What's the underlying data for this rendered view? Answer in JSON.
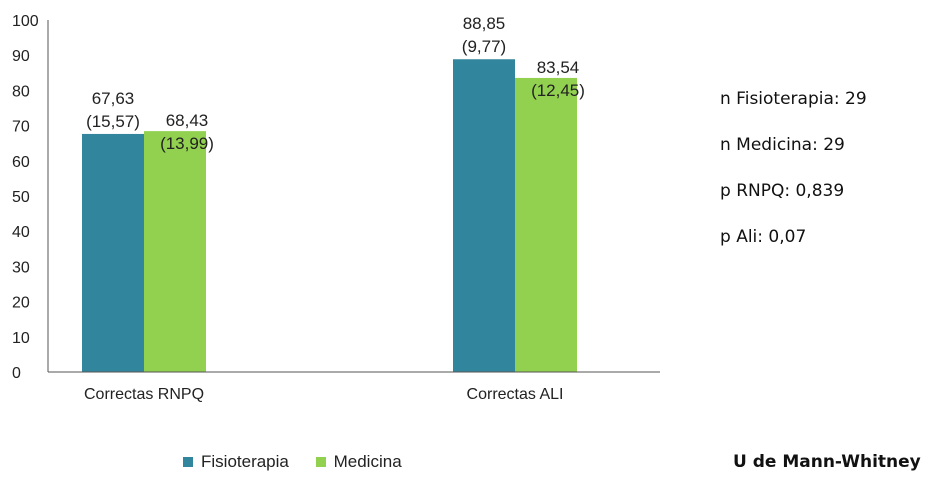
{
  "chart_data": {
    "type": "bar",
    "categories": [
      "Correctas RNPQ",
      "Correctas ALI"
    ],
    "series": [
      {
        "name": "Fisioterapia",
        "values": [
          67.63,
          88.85
        ],
        "labels": [
          "67,63",
          "88,85"
        ],
        "sd_labels": [
          "(15,57)",
          "(9,77)"
        ],
        "color": "#31859C"
      },
      {
        "name": "Medicina",
        "values": [
          68.43,
          83.54
        ],
        "labels": [
          "68,43",
          "83,54"
        ],
        "sd_labels": [
          "(13,99)",
          "(12,45)"
        ],
        "color": "#92D050"
      }
    ],
    "ylim": [
      0,
      100
    ],
    "yticks": [
      0,
      10,
      20,
      30,
      40,
      50,
      60,
      70,
      80,
      90,
      100
    ],
    "grid": false,
    "legend": "bottom"
  },
  "stats": [
    "n Fisioterapia: 29",
    "n Medicina: 29",
    "p RNPQ: 0,839",
    "p Ali: 0,07"
  ],
  "test_name": "U de Mann-Whitney"
}
